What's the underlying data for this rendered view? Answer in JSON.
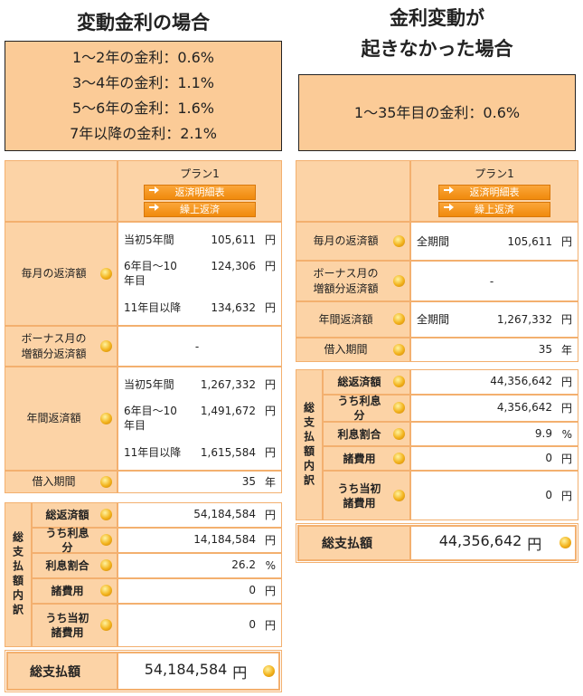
{
  "left": {
    "title": [
      "変動金利の場合"
    ],
    "rates": [
      "1～2年の金利：0.6%",
      "3～4年の金利：1.1%",
      "5～6年の金利：1.6%",
      "7年以降の金利：2.1%"
    ],
    "plan": {
      "name": "プラン1",
      "buttons": [
        "返済明細表",
        "繰上返済"
      ]
    },
    "rows": [
      {
        "label": "毎月の返済額",
        "items": [
          {
            "period": "当初5年間",
            "value": "105,611",
            "unit": "円"
          },
          {
            "period": "6年目～10年目",
            "value": "124,306",
            "unit": "円"
          },
          {
            "period": "11年目以降",
            "value": "134,632",
            "unit": "円"
          }
        ]
      },
      {
        "label": "ボーナス月の増額分返済額",
        "value": "-"
      },
      {
        "label": "年間返済額",
        "items": [
          {
            "period": "当初5年間",
            "value": "1,267,332",
            "unit": "円"
          },
          {
            "period": "6年目～10年目",
            "value": "1,491,672",
            "unit": "円"
          },
          {
            "period": "11年目以降",
            "value": "1,615,584",
            "unit": "円"
          }
        ]
      },
      {
        "label": "借入期間",
        "value": "35",
        "unit": "年"
      }
    ],
    "breakdown": {
      "title": "総支払額内訳",
      "rows": [
        {
          "label": "総返済額",
          "value": "54,184,584",
          "unit": "円"
        },
        {
          "label": "うち利息分",
          "value": "14,184,584",
          "unit": "円"
        },
        {
          "label": "利息割合",
          "value": "26.2",
          "unit": "%"
        },
        {
          "label": "諸費用",
          "value": "0",
          "unit": "円"
        },
        {
          "label": "うち当初諸費用",
          "value": "0",
          "unit": "円"
        }
      ]
    },
    "total": {
      "label": "総支払額",
      "value": "54,184,584",
      "unit": "円"
    }
  },
  "right": {
    "title": [
      "金利変動が",
      "起きなかった場合"
    ],
    "rates": [
      "1～35年目の金利：0.6%"
    ],
    "plan": {
      "name": "プラン1",
      "buttons": [
        "返済明細表",
        "繰上返済"
      ]
    },
    "rows": [
      {
        "label": "毎月の返済額",
        "items": [
          {
            "period": "全期間",
            "value": "105,611",
            "unit": "円"
          }
        ]
      },
      {
        "label": "ボーナス月の増額分返済額",
        "value": "-"
      },
      {
        "label": "年間返済額",
        "items": [
          {
            "period": "全期間",
            "value": "1,267,332",
            "unit": "円"
          }
        ]
      },
      {
        "label": "借入期間",
        "value": "35",
        "unit": "年"
      }
    ],
    "breakdown": {
      "title": "総支払額内訳",
      "rows": [
        {
          "label": "総返済額",
          "value": "44,356,642",
          "unit": "円"
        },
        {
          "label": "うち利息分",
          "value": "4,356,642",
          "unit": "円"
        },
        {
          "label": "利息割合",
          "value": "9.9",
          "unit": "%"
        },
        {
          "label": "諸費用",
          "value": "0",
          "unit": "円"
        },
        {
          "label": "うち当初諸費用",
          "value": "0",
          "unit": "円"
        }
      ]
    },
    "total": {
      "label": "総支払額",
      "value": "44,356,642",
      "unit": "円"
    }
  }
}
